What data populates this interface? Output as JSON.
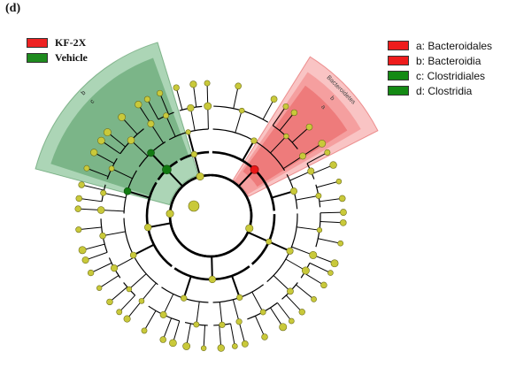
{
  "panel_label": "(d)",
  "group_legend": [
    {
      "label": "KF-2X",
      "color": "#ee2222"
    },
    {
      "label": "Vehicle",
      "color": "#1e8b1e"
    }
  ],
  "taxa_legend": [
    {
      "label": "a: Bacteroidales",
      "color": "#ee1c1c"
    },
    {
      "label": "b: Bacteroidia",
      "color": "#ee1c1c"
    },
    {
      "label": "c: Clostridiales",
      "color": "#148a14"
    },
    {
      "label": "d: Clostridia",
      "color": "#148a14"
    }
  ],
  "highlight_labels": {
    "red_outer": "Bacteroidetes",
    "red_b": "b",
    "red_a": "a",
    "green_b": "b",
    "green_c": "c"
  },
  "colors": {
    "node": "#c9c93a",
    "node_stroke": "#6e6e1a",
    "red_node": "#e81818",
    "green_node": "#127a12",
    "red_sector": "#f06565",
    "green_sector": "#3a9a52"
  }
}
